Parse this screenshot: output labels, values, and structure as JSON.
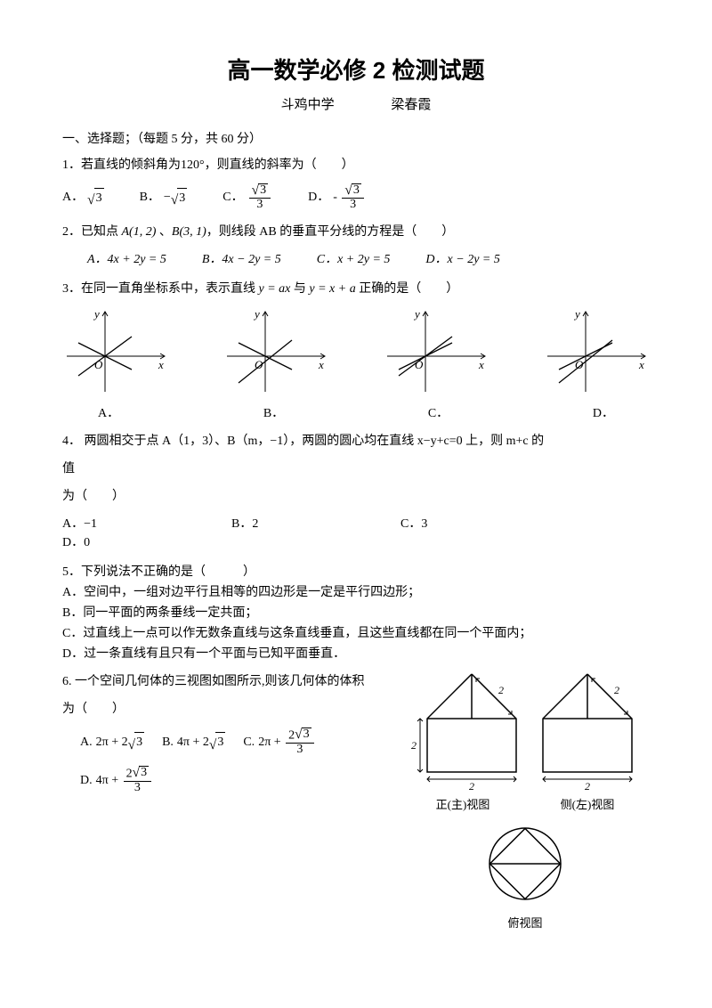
{
  "title": "高一数学必修 2 检测试题",
  "school": "斗鸡中学",
  "author": "梁春霞",
  "section1": "一、选择题；（每题 5 分，共 60 分）",
  "q1": {
    "stem_pre": "1．若直线的倾斜角为",
    "angle": "120°",
    "stem_post": "，则直线的斜率为（　　）",
    "A": "A．",
    "B": "B．",
    "C": "C．",
    "D": "D．",
    "sqrt3": "3",
    "neg": "−",
    "denom3": "3"
  },
  "q2": {
    "stem_pre": "2．已知点 ",
    "ptA": "A(1, 2)",
    "sep": " 、",
    "ptB": "B(3, 1)",
    "stem_post": "，则线段 AB 的垂直平分线的方程是（　　）",
    "A": "A．4x + 2y = 5",
    "B": "B．4x − 2y = 5",
    "C": "C．x + 2y = 5",
    "D": "D．x − 2y = 5"
  },
  "q3": {
    "stem_pre": "3．在同一直角坐标系中，表示直线 ",
    "eq1": "y = ax",
    "and": " 与 ",
    "eq2": "y = x + a",
    "stem_post": " 正确的是（　　）",
    "labels": [
      "A．",
      "B．",
      "C．",
      "D．"
    ],
    "charts": [
      {
        "line1": [
          -30,
          15,
          30,
          -15
        ],
        "line2": [
          -30,
          -22,
          30,
          22
        ],
        "intercept": 8
      },
      {
        "line1": [
          -30,
          15,
          30,
          -15
        ],
        "line2": [
          -30,
          -30,
          30,
          18
        ],
        "intercept": -8
      },
      {
        "line1": [
          -30,
          -15,
          30,
          15
        ],
        "line2": [
          -30,
          -22,
          30,
          22
        ],
        "intercept": 8
      },
      {
        "line1": [
          -30,
          -15,
          30,
          15
        ],
        "line2": [
          -30,
          -30,
          30,
          18
        ],
        "intercept": -8
      }
    ]
  },
  "q4": {
    "line1": "4． 两圆相交于点 A（1，3）、B（m，−1），两圆的圆心均在直线 x−y+c=0 上，则 m+c 的",
    "line2": "值",
    "line3": "为（　　）",
    "A": "A．−1",
    "B": "B．2",
    "C": "C．3",
    "D": "D．0"
  },
  "q5": {
    "stem": "5．下列说法不正确的是（　　　）",
    "A": "A．空间中，一组对边平行且相等的四边形是一定是平行四边形；",
    "B": "B．同一平面的两条垂线一定共面；",
    "C": "C．过直线上一点可以作无数条直线与这条直线垂直，且这些直线都在同一个平面内；",
    "D": "D．过一条直线有且只有一个平面与已知平面垂直．"
  },
  "q6": {
    "stem1": "6. 一个空间几何体的三视图如图所示,则该几何体的体积",
    "stem2": "为（　　）",
    "A": "A.",
    "B": "B.",
    "C": "C.",
    "D": "D.",
    "two": "2",
    "four": "4",
    "pi": "π",
    "plus": "+",
    "sqrt3": "3",
    "three": "3",
    "front_label": "正(主)视图",
    "side_label": "侧(左)视图",
    "top_label": "俯视图",
    "dim2": "2"
  },
  "style": {
    "stroke": "#000000",
    "axis_width": 1,
    "line_width": 1.2
  }
}
